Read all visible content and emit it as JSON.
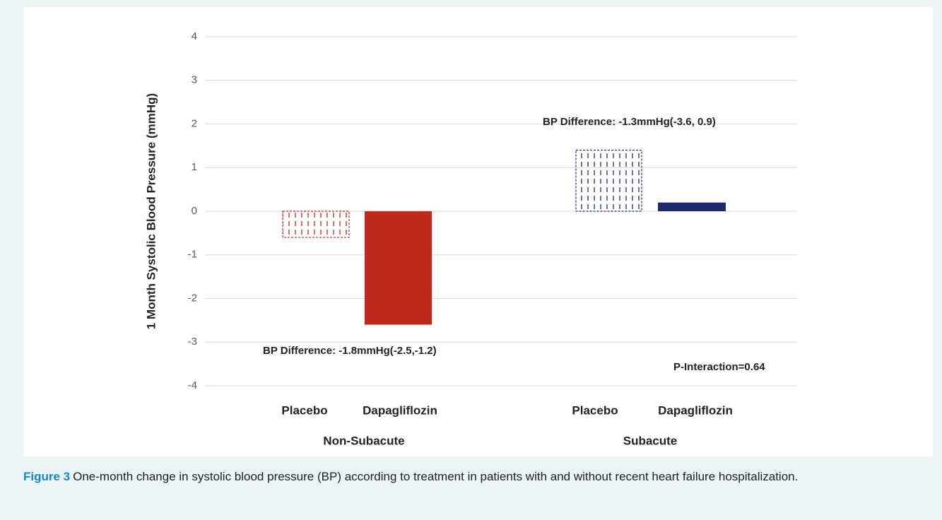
{
  "chart_data": {
    "type": "bar",
    "y_label": "1 Month Systolic Blood Pressure (mmHg)",
    "categories": [
      "Placebo",
      "Dapagliflozin",
      "Placebo",
      "Dapagliflozin"
    ],
    "groups": [
      "Non-Subacute",
      "Subacute"
    ],
    "values": [
      -0.6,
      -2.6,
      1.4,
      0.2
    ],
    "colors": [
      "#c0281e",
      "#c0281e",
      "#1f2a6b",
      "#1f2a6b"
    ],
    "hatched": [
      true,
      false,
      true,
      false
    ],
    "ylim": [
      -4,
      4
    ],
    "yticks": [
      -4,
      -3,
      -2,
      -1,
      0,
      1,
      2,
      3,
      4
    ],
    "grid": true,
    "annotations": [
      "BP Difference: -1.8mmHg(-2.5,-1.2)",
      "BP Difference: -1.3mmHg(-3.6, 0.9)",
      "P-Interaction=0.64"
    ]
  },
  "caption": {
    "label": "Figure 3",
    "text": "One-month change in systolic blood pressure (BP) according to treatment in patients with and without recent heart failure hospitalization."
  }
}
